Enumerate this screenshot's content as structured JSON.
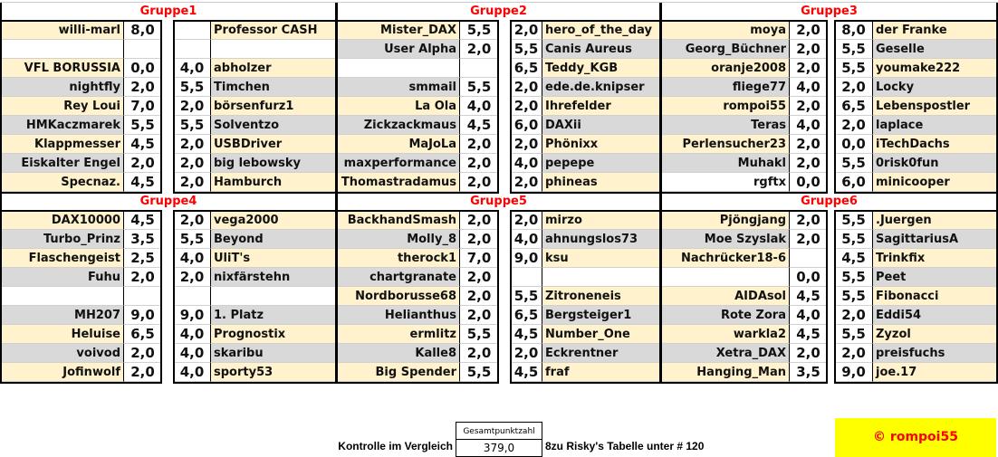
{
  "colors": {
    "name_row_odd": "#fff2cc",
    "name_row_even": "#d9d9d9",
    "group_title": "#ff0000",
    "badge": "#ffff00"
  },
  "groups": [
    {
      "title": "Gruppe1",
      "rows": [
        {
          "l": "willi-marl",
          "ls": "8,0",
          "rs": "",
          "r": "Professor CASH"
        },
        {
          "l": "",
          "ls": "",
          "rs": "",
          "r": ""
        },
        {
          "l": "VFL BORUSSIA",
          "ls": "0,0",
          "rs": "4,0",
          "r": "abholzer"
        },
        {
          "l": "nightfly",
          "ls": "2,0",
          "rs": "5,5",
          "r": "Timchen"
        },
        {
          "l": "Rey Loui",
          "ls": "7,0",
          "rs": "2,0",
          "r": "börsenfurz1"
        },
        {
          "l": "HMKaczmarek",
          "ls": "5,5",
          "rs": "5,5",
          "r": "Solventzo"
        },
        {
          "l": "Klappmesser",
          "ls": "4,5",
          "rs": "2,0",
          "r": "USBDriver"
        },
        {
          "l": "Eiskalter Engel",
          "ls": "2,0",
          "rs": "2,0",
          "r": "big lebowsky"
        },
        {
          "l": "Specnaz.",
          "ls": "4,5",
          "rs": "2,0",
          "r": "Hamburch"
        }
      ]
    },
    {
      "title": "Gruppe2",
      "rows": [
        {
          "l": "Mister_DAX",
          "ls": "5,5",
          "rs": "2,0",
          "r": "hero_of_the_day"
        },
        {
          "l": "User Alpha",
          "ls": "2,0",
          "rs": "5,5",
          "r": "Canis Aureus"
        },
        {
          "l": "",
          "ls": "",
          "rs": "6,5",
          "r": "Teddy_KGB"
        },
        {
          "l": "smmail",
          "ls": "5,5",
          "rs": "2,0",
          "r": "ede.de.knipser"
        },
        {
          "l": "La Ola",
          "ls": "4,0",
          "rs": "2,0",
          "r": "Ihrefelder"
        },
        {
          "l": "Zickzackmaus",
          "ls": "4,5",
          "rs": "6,0",
          "r": "DAXii"
        },
        {
          "l": "MaJoLa",
          "ls": "2,0",
          "rs": "2,0",
          "r": "Phönixx"
        },
        {
          "l": "maxperformance",
          "ls": "2,0",
          "rs": "4,0",
          "r": "pepepe"
        },
        {
          "l": "Thomastradamus",
          "ls": "2,0",
          "rs": "2,0",
          "r": "phineas"
        }
      ]
    },
    {
      "title": "Gruppe3",
      "rows": [
        {
          "l": "moya",
          "ls": "2,0",
          "rs": "8,0",
          "r": "der Franke"
        },
        {
          "l": "Georg_Büchner",
          "ls": "2,0",
          "rs": "5,5",
          "r": "Geselle"
        },
        {
          "l": "oranje2008",
          "ls": "2,0",
          "rs": "5,5",
          "r": "youmake222"
        },
        {
          "l": "fliege77",
          "ls": "4,0",
          "rs": "2,0",
          "r": "Locky"
        },
        {
          "l": "rompoi55",
          "ls": "2,0",
          "rs": "6,5",
          "r": "Lebenspostler"
        },
        {
          "l": "Teras",
          "ls": "4,0",
          "rs": "2,0",
          "r": "laplace"
        },
        {
          "l": "Perlensucher23",
          "ls": "2,0",
          "rs": "0,0",
          "r": "iTechDachs"
        },
        {
          "l": "Muhakl",
          "ls": "2,0",
          "rs": "5,5",
          "r": "0risk0fun"
        },
        {
          "l": "rgftx",
          "ls": "0,0",
          "rs": "6,0",
          "r": "minicooper"
        }
      ]
    },
    {
      "title": "Gruppe4",
      "rows": [
        {
          "l": "DAX10000",
          "ls": "4,5",
          "rs": "2,0",
          "r": "vega2000"
        },
        {
          "l": "Turbo_Prinz",
          "ls": "3,5",
          "rs": "5,5",
          "r": "Beyond"
        },
        {
          "l": "Flaschengeist",
          "ls": "2,5",
          "rs": "4,0",
          "r": "UliT's"
        },
        {
          "l": "Fuhu",
          "ls": "2,0",
          "rs": "2,0",
          "r": "nixfärstehn"
        },
        {
          "l": "",
          "ls": "",
          "rs": "",
          "r": ""
        },
        {
          "l": "MH207",
          "ls": "9,0",
          "rs": "9,0",
          "r": "1. Platz"
        },
        {
          "l": "Heluise",
          "ls": "6,5",
          "rs": "4,0",
          "r": "Prognostix"
        },
        {
          "l": "voivod",
          "ls": "2,0",
          "rs": "4,0",
          "r": "skaribu"
        },
        {
          "l": "Jofinwolf",
          "ls": "2,0",
          "rs": "4,0",
          "r": "sporty53"
        }
      ]
    },
    {
      "title": "Gruppe5",
      "rows": [
        {
          "l": "BackhandSmash",
          "ls": "2,0",
          "rs": "2,0",
          "r": "mirzo"
        },
        {
          "l": "Molly_8",
          "ls": "2,0",
          "rs": "4,0",
          "r": "ahnungslos73"
        },
        {
          "l": "therock1",
          "ls": "7,0",
          "rs": "9,0",
          "r": "ksu"
        },
        {
          "l": "chartgranate",
          "ls": "2,0",
          "rs": "",
          "r": ""
        },
        {
          "l": "Nordborusse68",
          "ls": "2,0",
          "rs": "5,5",
          "r": "Zitroneneis"
        },
        {
          "l": "Helianthus",
          "ls": "2,0",
          "rs": "6,5",
          "r": "Bergsteiger1"
        },
        {
          "l": "ermlitz",
          "ls": "5,5",
          "rs": "4,5",
          "r": "Number_One"
        },
        {
          "l": "Kalle8",
          "ls": "2,0",
          "rs": "2,0",
          "r": "Eckrentner"
        },
        {
          "l": "Big Spender",
          "ls": "5,5",
          "rs": "4,5",
          "r": "fraf"
        }
      ]
    },
    {
      "title": "Gruppe6",
      "rows": [
        {
          "l": "Pjöngjang",
          "ls": "2,0",
          "rs": "5,5",
          "r": ".Juergen"
        },
        {
          "l": "Moe Szyslak",
          "ls": "2,0",
          "rs": "5,5",
          "r": "SagittariusA"
        },
        {
          "l": "Nachrücker18-6",
          "ls": "",
          "rs": "4,5",
          "r": "Trinkfix"
        },
        {
          "l": "",
          "ls": "0,0",
          "rs": "5,5",
          "r": "Peet"
        },
        {
          "l": "AIDAsol",
          "ls": "4,5",
          "rs": "5,5",
          "r": "Fibonacci"
        },
        {
          "l": "Rote Zora",
          "ls": "4,0",
          "rs": "2,0",
          "r": "Eddi54"
        },
        {
          "l": "warkla2",
          "ls": "4,5",
          "rs": "5,5",
          "r": "Zyzol"
        },
        {
          "l": "Xetra_DAX",
          "ls": "2,0",
          "rs": "2,0",
          "r": "preisfuchs"
        },
        {
          "l": "Hanging_Man",
          "ls": "3,5",
          "rs": "9,0",
          "r": "joe.17"
        }
      ]
    }
  ],
  "footer": {
    "label": "Kontrolle im Vergleich",
    "total_header": "Gesamtpunktzahl",
    "total_value": "379,0",
    "note": "8zu Risky's Tabelle unter # 120",
    "copyright": "© rompoi55"
  }
}
